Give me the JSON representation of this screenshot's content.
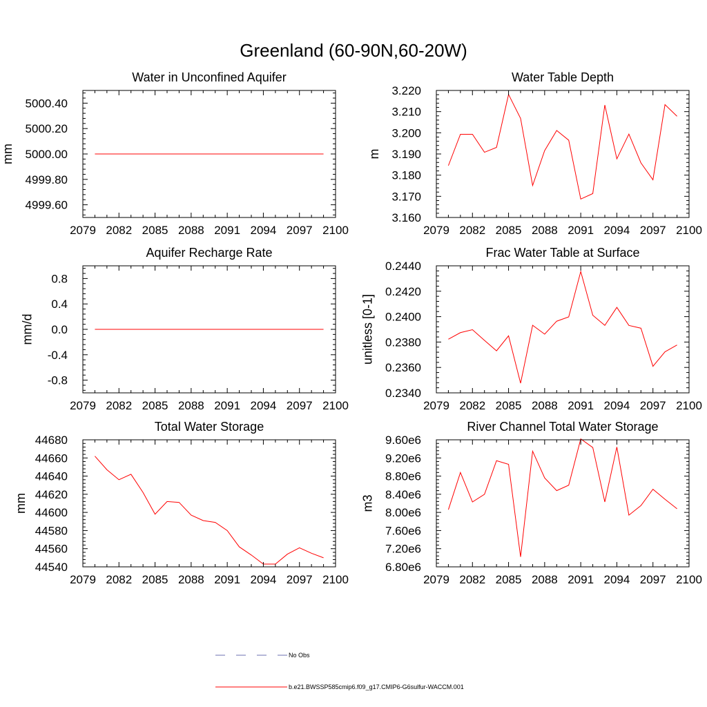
{
  "figure": {
    "title": "Greenland (60-90N,60-20W)",
    "legend": [
      {
        "label": "No Obs",
        "color": "#6b6fb0",
        "style": "dashed"
      },
      {
        "label": "b.e21.BWSSP585cmip6.f09_g17.CMIP6-G6sulfur-WACCM.001",
        "color": "#ff0000",
        "style": "solid"
      }
    ]
  },
  "chart_data": [
    {
      "type": "line",
      "title": "Water in Unconfined Aquifer",
      "ylabel": "mm",
      "xlim": [
        2079,
        2100
      ],
      "ylim": [
        4999.5,
        5000.5
      ],
      "xticks": [
        2079,
        2082,
        2085,
        2088,
        2091,
        2094,
        2097,
        2100
      ],
      "xtick_labels": [
        "2079",
        "2082",
        "2085",
        "2088",
        "2091",
        "2094",
        "2097",
        "2100"
      ],
      "yticks": [
        4999.6,
        4999.8,
        5000.0,
        5000.2,
        5000.4
      ],
      "ytick_labels": [
        "4999.60",
        "4999.80",
        "5000.00",
        "5000.20",
        "5000.40"
      ],
      "series": [
        {
          "color": "#ff0000",
          "x": [
            2080,
            2081,
            2082,
            2083,
            2084,
            2085,
            2086,
            2087,
            2088,
            2089,
            2090,
            2091,
            2092,
            2093,
            2094,
            2095,
            2096,
            2097,
            2098,
            2099
          ],
          "y": [
            5000,
            5000,
            5000,
            5000,
            5000,
            5000,
            5000,
            5000,
            5000,
            5000,
            5000,
            5000,
            5000,
            5000,
            5000,
            5000,
            5000,
            5000,
            5000,
            5000
          ]
        }
      ]
    },
    {
      "type": "line",
      "title": "Water Table Depth",
      "ylabel": "m",
      "xlim": [
        2079,
        2100
      ],
      "ylim": [
        3.16,
        3.22
      ],
      "xticks": [
        2079,
        2082,
        2085,
        2088,
        2091,
        2094,
        2097,
        2100
      ],
      "xtick_labels": [
        "2079",
        "2082",
        "2085",
        "2088",
        "2091",
        "2094",
        "2097",
        "2100"
      ],
      "yticks": [
        3.16,
        3.17,
        3.18,
        3.19,
        3.2,
        3.21,
        3.22
      ],
      "ytick_labels": [
        "3.160",
        "3.170",
        "3.180",
        "3.190",
        "3.200",
        "3.210",
        "3.220"
      ],
      "series": [
        {
          "color": "#ff0000",
          "x": [
            2080,
            2081,
            2082,
            2083,
            2084,
            2085,
            2086,
            2087,
            2088,
            2089,
            2090,
            2091,
            2092,
            2093,
            2094,
            2095,
            2096,
            2097,
            2098,
            2099
          ],
          "y": [
            3.1845,
            3.1993,
            3.1993,
            3.1908,
            3.1931,
            3.2181,
            3.2068,
            3.1751,
            3.1916,
            3.2011,
            3.1965,
            3.1687,
            3.1713,
            3.2131,
            3.1877,
            3.1994,
            3.1858,
            3.1778,
            3.2133,
            3.2078
          ]
        }
      ]
    },
    {
      "type": "line",
      "title": "Aquifer Recharge Rate",
      "ylabel": "mm/d",
      "xlim": [
        2079,
        2100
      ],
      "ylim": [
        -1.0,
        1.0
      ],
      "xticks": [
        2079,
        2082,
        2085,
        2088,
        2091,
        2094,
        2097,
        2100
      ],
      "xtick_labels": [
        "2079",
        "2082",
        "2085",
        "2088",
        "2091",
        "2094",
        "2097",
        "2100"
      ],
      "yticks": [
        -0.8,
        -0.4,
        0.0,
        0.4,
        0.8
      ],
      "ytick_labels": [
        "-0.8",
        "-0.4",
        "0.0",
        "0.4",
        "0.8"
      ],
      "series": [
        {
          "color": "#ff0000",
          "x": [
            2080,
            2081,
            2082,
            2083,
            2084,
            2085,
            2086,
            2087,
            2088,
            2089,
            2090,
            2091,
            2092,
            2093,
            2094,
            2095,
            2096,
            2097,
            2098,
            2099
          ],
          "y": [
            0,
            0,
            0,
            0,
            0,
            0,
            0,
            0,
            0,
            0,
            0,
            0,
            0,
            0,
            0,
            0,
            0,
            0,
            0,
            0
          ]
        }
      ]
    },
    {
      "type": "line",
      "title": "Frac Water Table at Surface",
      "ylabel": "unitless [0-1]",
      "xlim": [
        2079,
        2100
      ],
      "ylim": [
        0.234,
        0.244
      ],
      "xticks": [
        2079,
        2082,
        2085,
        2088,
        2091,
        2094,
        2097,
        2100
      ],
      "xtick_labels": [
        "2079",
        "2082",
        "2085",
        "2088",
        "2091",
        "2094",
        "2097",
        "2100"
      ],
      "yticks": [
        0.234,
        0.236,
        0.238,
        0.24,
        0.242,
        0.244
      ],
      "ytick_labels": [
        "0.2340",
        "0.2360",
        "0.2380",
        "0.2400",
        "0.2420",
        "0.2440"
      ],
      "series": [
        {
          "color": "#ff0000",
          "x": [
            2080,
            2081,
            2082,
            2083,
            2084,
            2085,
            2086,
            2087,
            2088,
            2089,
            2090,
            2091,
            2092,
            2093,
            2094,
            2095,
            2096,
            2097,
            2098,
            2099
          ],
          "y": [
            0.23822,
            0.23874,
            0.23897,
            0.23813,
            0.23731,
            0.23849,
            0.23476,
            0.23932,
            0.23862,
            0.23964,
            0.23998,
            0.24355,
            0.24011,
            0.23931,
            0.24073,
            0.23931,
            0.23909,
            0.23609,
            0.23723,
            0.23777
          ]
        }
      ]
    },
    {
      "type": "line",
      "title": "Total Water Storage",
      "ylabel": "mm",
      "xlim": [
        2079,
        2100
      ],
      "ylim": [
        44540,
        44680
      ],
      "xticks": [
        2079,
        2082,
        2085,
        2088,
        2091,
        2094,
        2097,
        2100
      ],
      "xtick_labels": [
        "2079",
        "2082",
        "2085",
        "2088",
        "2091",
        "2094",
        "2097",
        "2100"
      ],
      "yticks": [
        44540,
        44560,
        44580,
        44600,
        44620,
        44640,
        44660,
        44680
      ],
      "ytick_labels": [
        "44540",
        "44560",
        "44580",
        "44600",
        "44620",
        "44640",
        "44660",
        "44680"
      ],
      "series": [
        {
          "color": "#ff0000",
          "x": [
            2080,
            2081,
            2082,
            2083,
            2084,
            2085,
            2086,
            2087,
            2088,
            2089,
            2090,
            2091,
            2092,
            2093,
            2094,
            2095,
            2096,
            2097,
            2098,
            2099
          ],
          "y": [
            44662,
            44647,
            44636,
            44642,
            44622,
            44598,
            44612,
            44611,
            44597,
            44591,
            44589,
            44580,
            44562,
            44553,
            44543,
            44543,
            44554,
            44561,
            44555,
            44550
          ]
        }
      ]
    },
    {
      "type": "line",
      "title": "River Channel Total Water Storage",
      "ylabel": "m3",
      "xlim": [
        2079,
        2100
      ],
      "ylim": [
        6800000,
        9600000
      ],
      "xticks": [
        2079,
        2082,
        2085,
        2088,
        2091,
        2094,
        2097,
        2100
      ],
      "xtick_labels": [
        "2079",
        "2082",
        "2085",
        "2088",
        "2091",
        "2094",
        "2097",
        "2100"
      ],
      "yticks": [
        6800000,
        7200000,
        7600000,
        8000000,
        8400000,
        8800000,
        9200000,
        9600000
      ],
      "ytick_labels": [
        "6.80e6",
        "7.20e6",
        "7.60e6",
        "8.00e6",
        "8.40e6",
        "8.80e6",
        "9.20e6",
        "9.60e6"
      ],
      "series": [
        {
          "color": "#ff0000",
          "x": [
            2080,
            2081,
            2082,
            2083,
            2084,
            2085,
            2086,
            2087,
            2088,
            2089,
            2090,
            2091,
            2092,
            2093,
            2094,
            2095,
            2096,
            2097,
            2098,
            2099
          ],
          "y": [
            8060000,
            8880000,
            8230000,
            8400000,
            9140000,
            9060000,
            7020000,
            9350000,
            8760000,
            8480000,
            8600000,
            9620000,
            9430000,
            8230000,
            9440000,
            7940000,
            8150000,
            8510000,
            8290000,
            8080000
          ]
        }
      ]
    }
  ]
}
